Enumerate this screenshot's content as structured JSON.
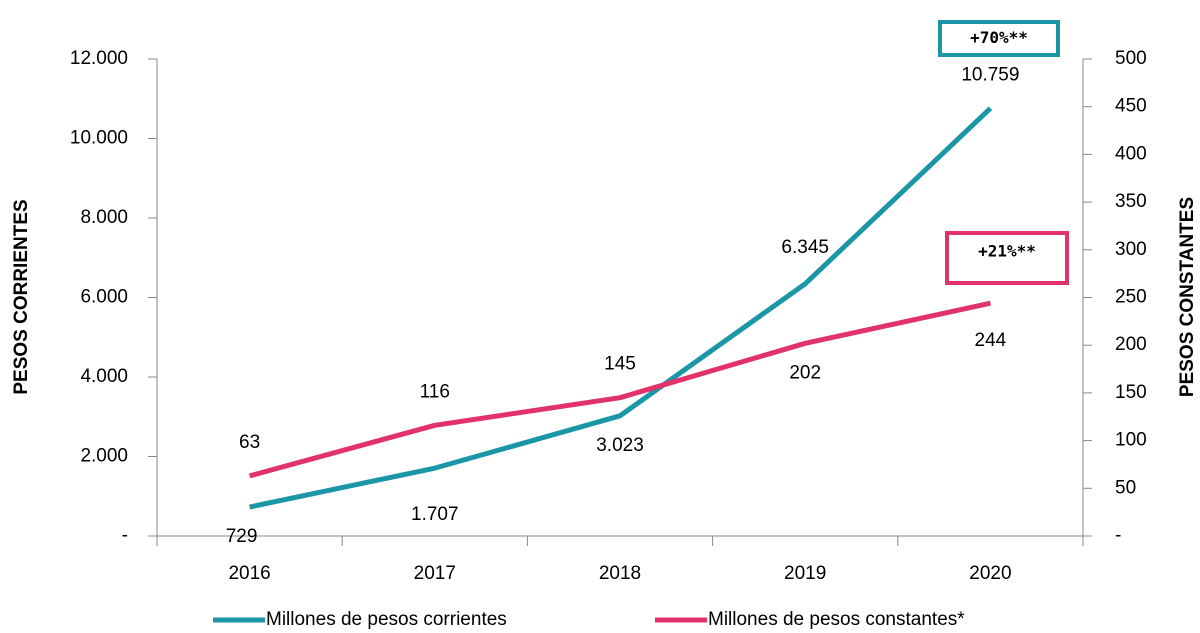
{
  "chart_data": {
    "type": "line",
    "categories": [
      "2016",
      "2017",
      "2018",
      "2019",
      "2020"
    ],
    "series": [
      {
        "name": "Millones de pesos corrientes",
        "color": "#1a96a6",
        "axis": "y",
        "values": [
          729,
          1707,
          3023,
          6345,
          10759
        ],
        "value_labels": [
          "729",
          "1.707",
          "3.023",
          "6.345",
          "10.759"
        ]
      },
      {
        "name": "Millones de pesos constantes*",
        "color": "#e2326b",
        "axis": "y2",
        "values": [
          63,
          116,
          145,
          202,
          244
        ]
      }
    ],
    "ylabel": "PESOS CORRIENTES",
    "y2label": "PESOS CONSTANTES",
    "ylim": [
      0,
      12000
    ],
    "yticks": [
      {
        "value": 0,
        "label": "-"
      },
      {
        "value": 2000,
        "label": "2.000"
      },
      {
        "value": 4000,
        "label": "4.000"
      },
      {
        "value": 6000,
        "label": "6.000"
      },
      {
        "value": 8000,
        "label": "8.000"
      },
      {
        "value": 10000,
        "label": "10.000"
      },
      {
        "value": 12000,
        "label": "12.000"
      }
    ],
    "y2lim": [
      0,
      500
    ],
    "y2ticks": [
      {
        "value": 0,
        "label": "-"
      },
      50,
      100,
      150,
      200,
      250,
      300,
      350,
      400,
      450,
      500
    ],
    "annotations": [
      {
        "text": "+70%**",
        "color": "#1a96a6"
      },
      {
        "text": "+21%**",
        "color": "#e2326b"
      }
    ],
    "legend": "bottom"
  }
}
